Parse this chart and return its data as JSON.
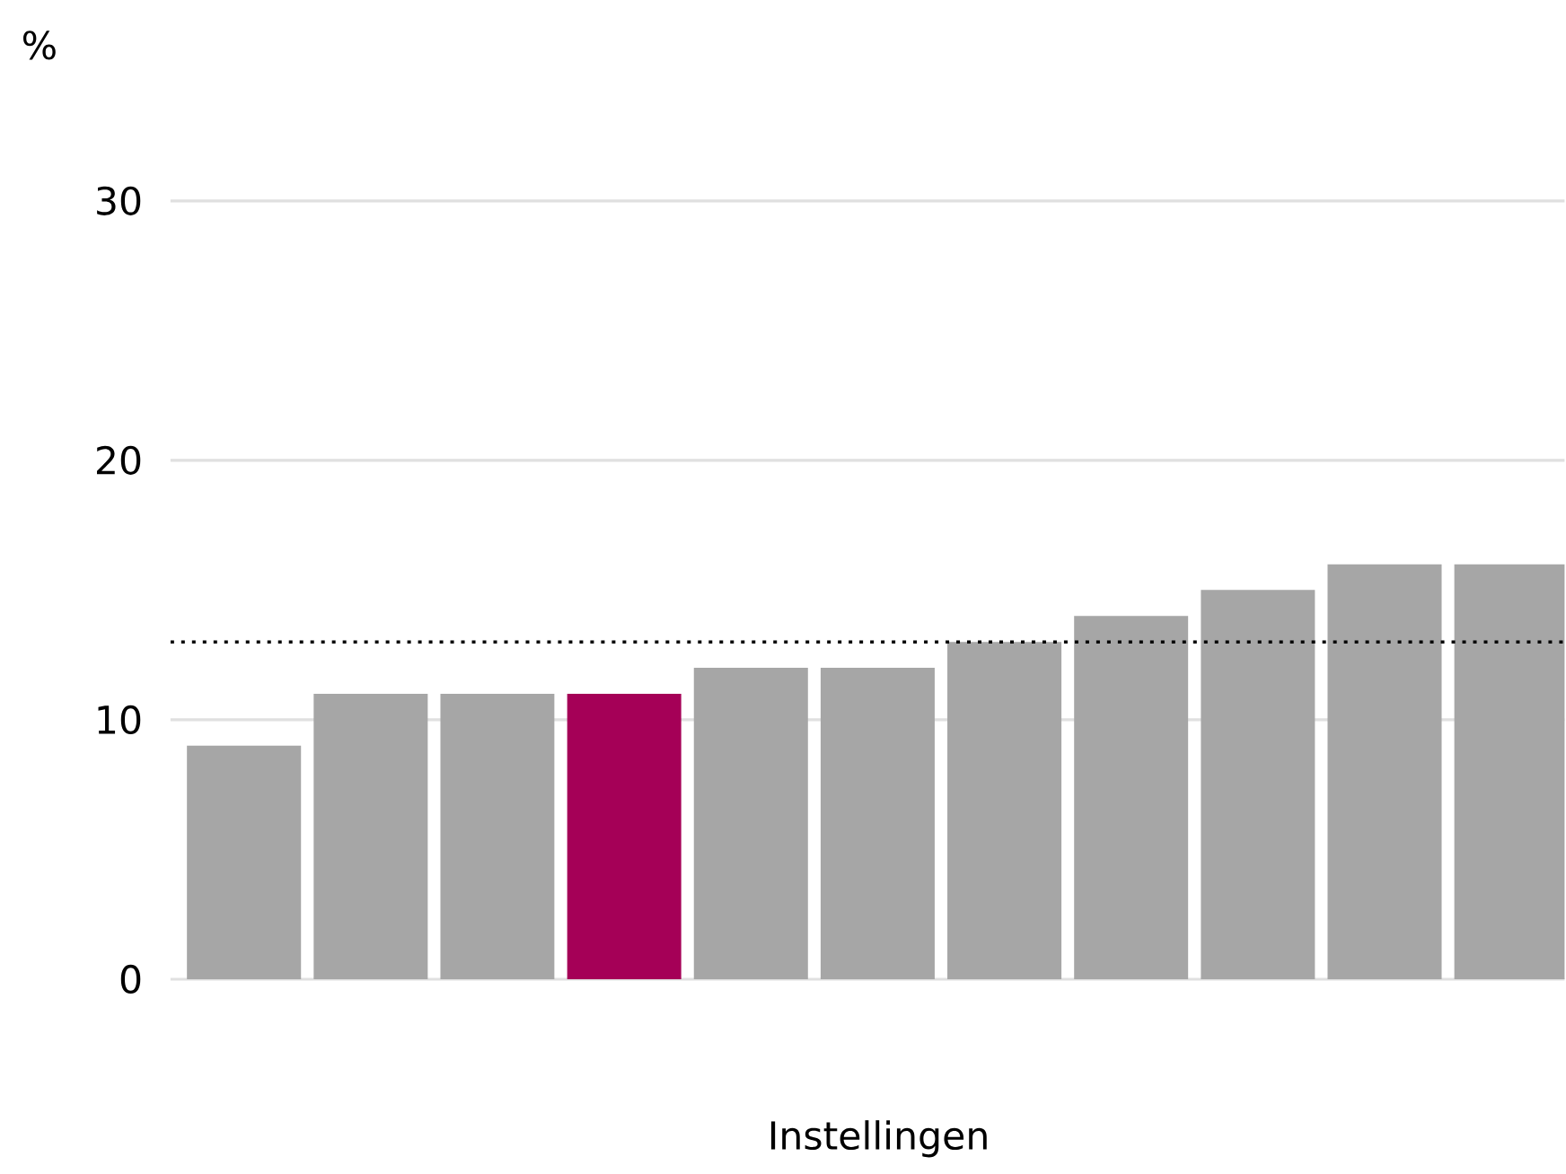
{
  "chart_data": {
    "type": "bar",
    "ylabel": "%",
    "xlabel": "Instellingen",
    "categories": [
      null,
      null,
      null,
      null,
      null,
      null,
      null,
      null,
      null,
      null,
      null
    ],
    "values": [
      9,
      11,
      11,
      11,
      12,
      12,
      13,
      14,
      15,
      16,
      16
    ],
    "colors": [
      "#a6a6a6",
      "#a6a6a6",
      "#a6a6a6",
      "#a50057",
      "#a6a6a6",
      "#a6a6a6",
      "#a6a6a6",
      "#a6a6a6",
      "#a6a6a6",
      "#a6a6a6",
      "#a6a6a6"
    ],
    "ylim": [
      0,
      30
    ],
    "yticks": [
      0,
      10,
      20,
      30
    ],
    "grid": "y",
    "ref_lines": [
      {
        "axis": "y",
        "value": 13,
        "color": "#000000",
        "line_style": "dotted"
      }
    ]
  }
}
